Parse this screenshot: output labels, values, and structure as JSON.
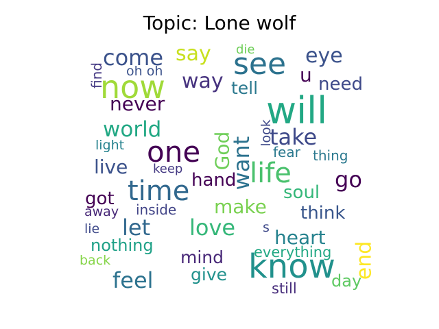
{
  "chart_data": {
    "type": "wordcloud",
    "title": "Topic: Lone wolf",
    "grid": false,
    "colormap": "viridis",
    "words": [
      {
        "text": "will",
        "weight": 1.0,
        "color": "#22a884",
        "rotate": 0
      },
      {
        "text": "know",
        "weight": 0.95,
        "color": "#21918c",
        "rotate": 0
      },
      {
        "text": "now",
        "weight": 0.92,
        "color": "#a0da39",
        "rotate": 0
      },
      {
        "text": "see",
        "weight": 0.9,
        "color": "#2c728e",
        "rotate": 0
      },
      {
        "text": "one",
        "weight": 0.88,
        "color": "#440154",
        "rotate": 0
      },
      {
        "text": "time",
        "weight": 0.86,
        "color": "#31688e",
        "rotate": 0
      },
      {
        "text": "life",
        "weight": 0.85,
        "color": "#4ac16d",
        "rotate": 0
      },
      {
        "text": "come",
        "weight": 0.72,
        "color": "#3b528b",
        "rotate": 0
      },
      {
        "text": "take",
        "weight": 0.72,
        "color": "#3e4989",
        "rotate": 0
      },
      {
        "text": "feel",
        "weight": 0.72,
        "color": "#2c728e",
        "rotate": 0
      },
      {
        "text": "world",
        "weight": 0.7,
        "color": "#22a884",
        "rotate": 0
      },
      {
        "text": "let",
        "weight": 0.7,
        "color": "#31688e",
        "rotate": 0
      },
      {
        "text": "love",
        "weight": 0.7,
        "color": "#35b779",
        "rotate": 0
      },
      {
        "text": "go",
        "weight": 0.7,
        "color": "#440154",
        "rotate": 0
      },
      {
        "text": "say",
        "weight": 0.64,
        "color": "#c8e020",
        "rotate": 0
      },
      {
        "text": "eye",
        "weight": 0.64,
        "color": "#3b528b",
        "rotate": 0
      },
      {
        "text": "way",
        "weight": 0.62,
        "color": "#46327e",
        "rotate": 0
      },
      {
        "text": "want",
        "weight": 0.64,
        "color": "#2c728e",
        "rotate": -90
      },
      {
        "text": "never",
        "weight": 0.6,
        "color": "#440154",
        "rotate": 0
      },
      {
        "text": "make",
        "weight": 0.6,
        "color": "#7ad151",
        "rotate": 0
      },
      {
        "text": "heart",
        "weight": 0.6,
        "color": "#26828e",
        "rotate": 0
      },
      {
        "text": "God",
        "weight": 0.58,
        "color": "#6ece58",
        "rotate": -90
      },
      {
        "text": "live",
        "weight": 0.56,
        "color": "#3b528b",
        "rotate": 0
      },
      {
        "text": "hand",
        "weight": 0.54,
        "color": "#440154",
        "rotate": 0
      },
      {
        "text": "soul",
        "weight": 0.54,
        "color": "#35b779",
        "rotate": 0
      },
      {
        "text": "think",
        "weight": 0.54,
        "color": "#39568c",
        "rotate": 0
      },
      {
        "text": "need",
        "weight": 0.54,
        "color": "#3e4989",
        "rotate": 0
      },
      {
        "text": "tell",
        "weight": 0.52,
        "color": "#2a788e",
        "rotate": 0
      },
      {
        "text": "mind",
        "weight": 0.52,
        "color": "#482878",
        "rotate": 0
      },
      {
        "text": "give",
        "weight": 0.52,
        "color": "#21918c",
        "rotate": 0
      },
      {
        "text": "nothing",
        "weight": 0.52,
        "color": "#1fa187",
        "rotate": 0
      },
      {
        "text": "u",
        "weight": 0.56,
        "color": "#440154",
        "rotate": 0
      },
      {
        "text": "got",
        "weight": 0.54,
        "color": "#440154",
        "rotate": 0
      },
      {
        "text": "end",
        "weight": 0.54,
        "color": "#fde725",
        "rotate": -90
      },
      {
        "text": "day",
        "weight": 0.48,
        "color": "#5ec962",
        "rotate": 0
      },
      {
        "text": "everything",
        "weight": 0.42,
        "color": "#22a884",
        "rotate": 0
      },
      {
        "text": "still",
        "weight": 0.42,
        "color": "#472d7b",
        "rotate": 0
      },
      {
        "text": "thing",
        "weight": 0.4,
        "color": "#2a788e",
        "rotate": 0
      },
      {
        "text": "fear",
        "weight": 0.38,
        "color": "#2a788e",
        "rotate": 0
      },
      {
        "text": "light",
        "weight": 0.38,
        "color": "#26828e",
        "rotate": 0
      },
      {
        "text": "keep",
        "weight": 0.34,
        "color": "#443983",
        "rotate": 0
      },
      {
        "text": "inside",
        "weight": 0.4,
        "color": "#414487",
        "rotate": 0
      },
      {
        "text": "away",
        "weight": 0.38,
        "color": "#482878",
        "rotate": 0
      },
      {
        "text": "lie",
        "weight": 0.36,
        "color": "#3e4989",
        "rotate": 0
      },
      {
        "text": "back",
        "weight": 0.36,
        "color": "#86d549",
        "rotate": 0
      },
      {
        "text": "look",
        "weight": 0.36,
        "color": "#3e4989",
        "rotate": -90
      },
      {
        "text": "find",
        "weight": 0.36,
        "color": "#443983",
        "rotate": -90
      },
      {
        "text": "oh oh",
        "weight": 0.36,
        "color": "#3b528b",
        "rotate": 0
      },
      {
        "text": "die",
        "weight": 0.34,
        "color": "#6ece58",
        "rotate": 0
      },
      {
        "text": "s",
        "weight": 0.34,
        "color": "#3e4989",
        "rotate": 0
      }
    ]
  }
}
